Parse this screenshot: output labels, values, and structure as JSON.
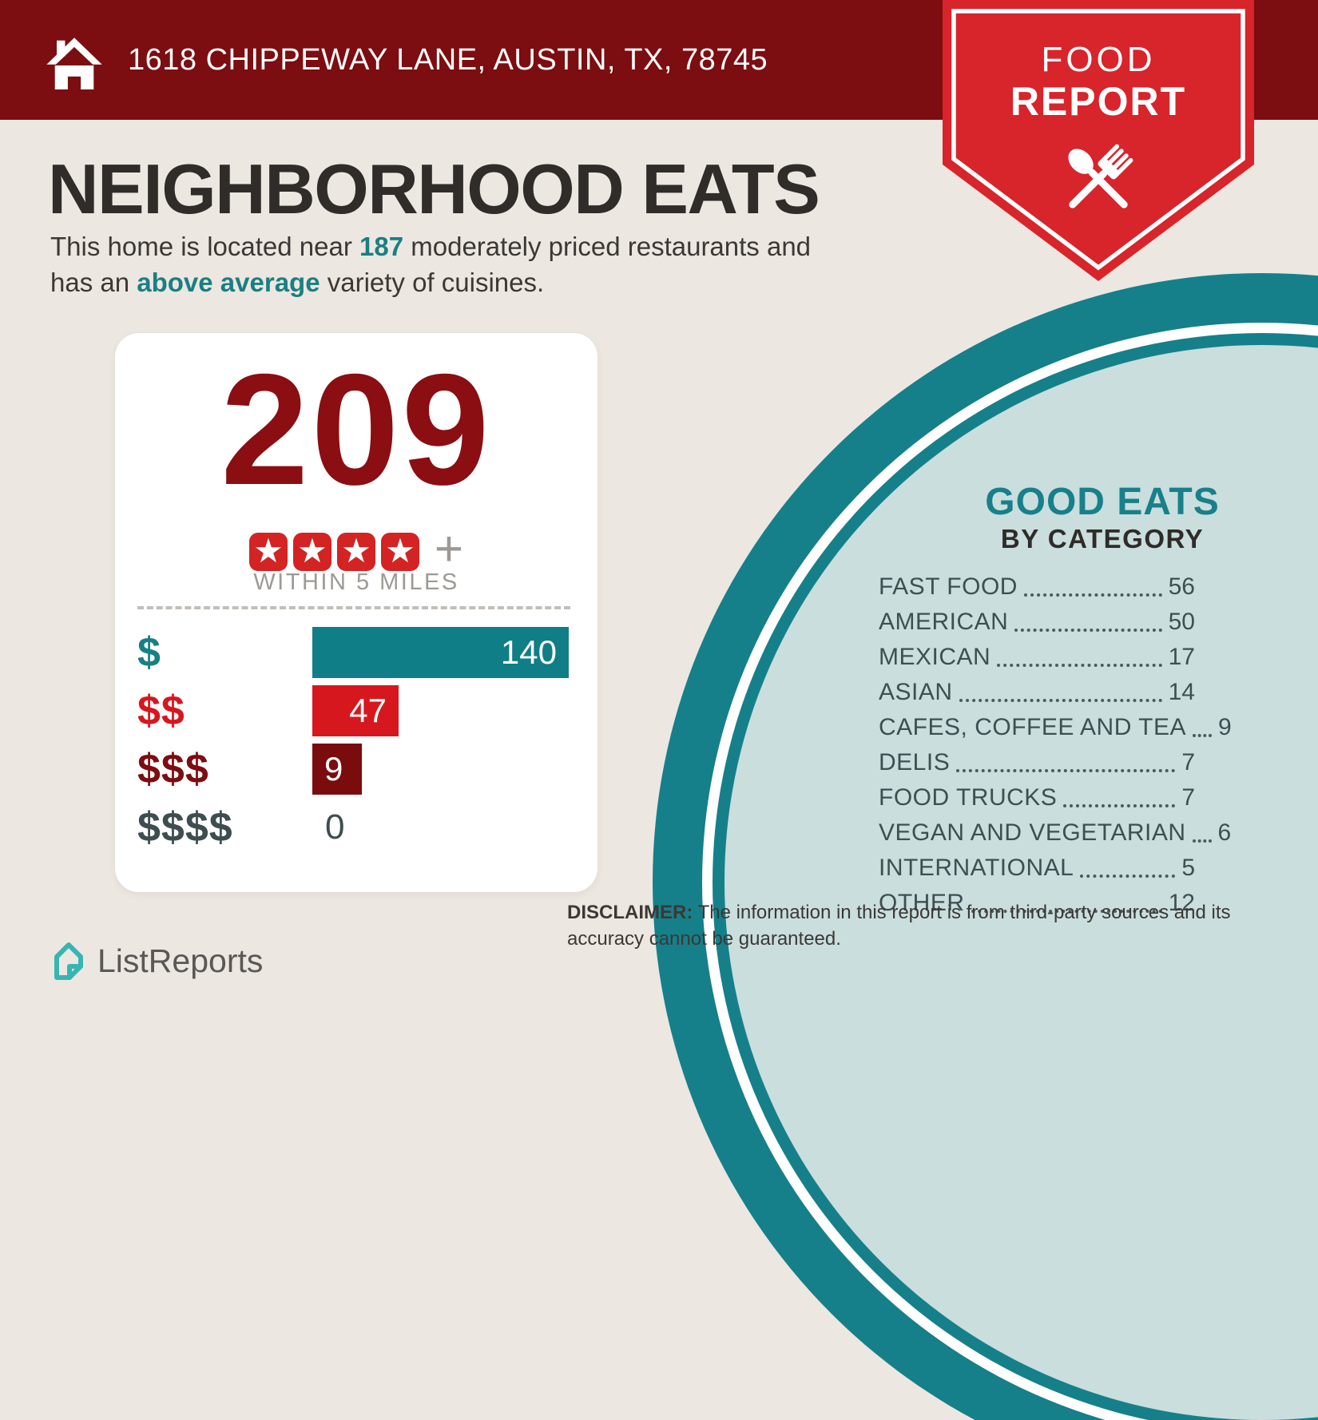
{
  "header": {
    "address": "1618 CHIPPEWAY LANE, AUSTIN, TX, 78745"
  },
  "ribbon": {
    "title_line1": "FOOD",
    "title_line2": "REPORT"
  },
  "intro": {
    "title": "NEIGHBORHOOD EATS",
    "line1_pre": "This home is located near ",
    "line1_count": "187",
    "line1_post": " moderately priced restaurants and",
    "line2_pre": "has an ",
    "line2_highlight": "above average",
    "line2_post": " variety of cuisines."
  },
  "stats_card": {
    "restaurant_count": "209",
    "rating_stars": 4,
    "rating_plus": "+",
    "radius_label": "WITHIN 5 MILES",
    "price_rows": [
      {
        "label": "$",
        "value": 140,
        "bar_color": "#0F7E87",
        "label_color": "#177F85"
      },
      {
        "label": "$$",
        "value": 47,
        "bar_color": "#D7171E",
        "label_color": "#D7171E"
      },
      {
        "label": "$$$",
        "value": 9,
        "bar_color": "#7A0C0E",
        "label_color": "#7C0D10"
      },
      {
        "label": "$$$$",
        "value": 0,
        "bar_color": null,
        "label_color": "#3E4D50"
      }
    ]
  },
  "good_eats": {
    "title": "GOOD EATS",
    "subtitle": "BY CATEGORY",
    "items": [
      {
        "label": "FAST FOOD",
        "value": 56
      },
      {
        "label": "AMERICAN",
        "value": 50
      },
      {
        "label": "MEXICAN",
        "value": 17
      },
      {
        "label": "ASIAN",
        "value": 14
      },
      {
        "label": "CAFES, COFFEE AND TEA",
        "value": 9
      },
      {
        "label": "DELIS",
        "value": 7
      },
      {
        "label": "FOOD TRUCKS",
        "value": 7
      },
      {
        "label": "VEGAN AND VEGETARIAN",
        "value": 6
      },
      {
        "label": "INTERNATIONAL",
        "value": 5
      },
      {
        "label": "OTHER",
        "value": 12
      }
    ]
  },
  "footer": {
    "brand": "ListReports",
    "disclaimer_label": "DISCLAIMER:",
    "disclaimer_line1": " The information in this report is from third-party sources and its",
    "disclaimer_line2": "accuracy cannot be guaranteed."
  },
  "colors": {
    "header_maroon": "#7C0D10",
    "ribbon_red": "#D8242B",
    "teal": "#15808A",
    "teal_text": "#1A7F83",
    "light_teal_fill": "#C9DEDD",
    "background_cream": "#EDE7E1",
    "bar_teal": "#0F7E87",
    "bar_red": "#D7171E",
    "bar_dark_red": "#7A0C0E",
    "count_maroon": "#8A0E12",
    "star_red": "#D32323",
    "slate_text": "#3E4F52",
    "logo_turquoise": "#35B6B2"
  },
  "chart_data": [
    {
      "type": "bar",
      "orientation": "horizontal",
      "title": "209 restaurants rated 4 stars+ within 5 miles, by price level",
      "categories": [
        "$",
        "$$",
        "$$$",
        "$$$$"
      ],
      "values": [
        140,
        47,
        9,
        0
      ],
      "bar_colors": [
        "#0F7E87",
        "#D7171E",
        "#7A0C0E",
        null
      ],
      "xlim": [
        0,
        140
      ],
      "grid": false,
      "value_labels": "inside-end"
    },
    {
      "type": "table",
      "title": "GOOD EATS BY CATEGORY",
      "categories": [
        "FAST FOOD",
        "AMERICAN",
        "MEXICAN",
        "ASIAN",
        "CAFES, COFFEE AND TEA",
        "DELIS",
        "FOOD TRUCKS",
        "VEGAN AND VEGETARIAN",
        "INTERNATIONAL",
        "OTHER"
      ],
      "values": [
        56,
        50,
        17,
        14,
        9,
        7,
        7,
        6,
        5,
        12
      ]
    }
  ]
}
